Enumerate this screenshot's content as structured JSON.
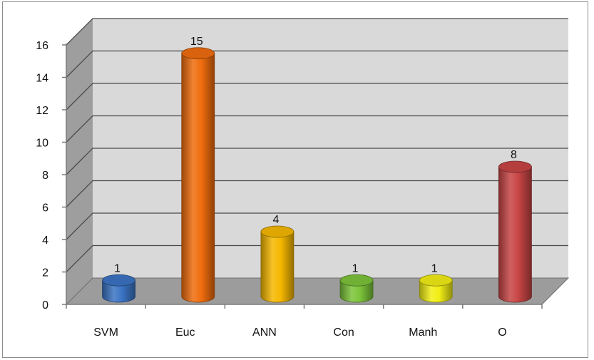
{
  "chart_data": {
    "type": "bar",
    "style": "3d-cylinder",
    "categories": [
      "SVM",
      "Euc",
      "ANN",
      "Con",
      "Manh",
      "O"
    ],
    "values": [
      1,
      15,
      4,
      1,
      1,
      8
    ],
    "colors": [
      "#3b74c4",
      "#f06d0e",
      "#f5b800",
      "#7cc43a",
      "#f2ee15",
      "#c84545"
    ],
    "ylim": [
      0,
      16
    ],
    "yticks": [
      0,
      2,
      4,
      6,
      8,
      10,
      12,
      14,
      16
    ],
    "title": "",
    "xlabel": "",
    "ylabel": "",
    "grid": true,
    "legend": "none",
    "data_labels": true
  }
}
